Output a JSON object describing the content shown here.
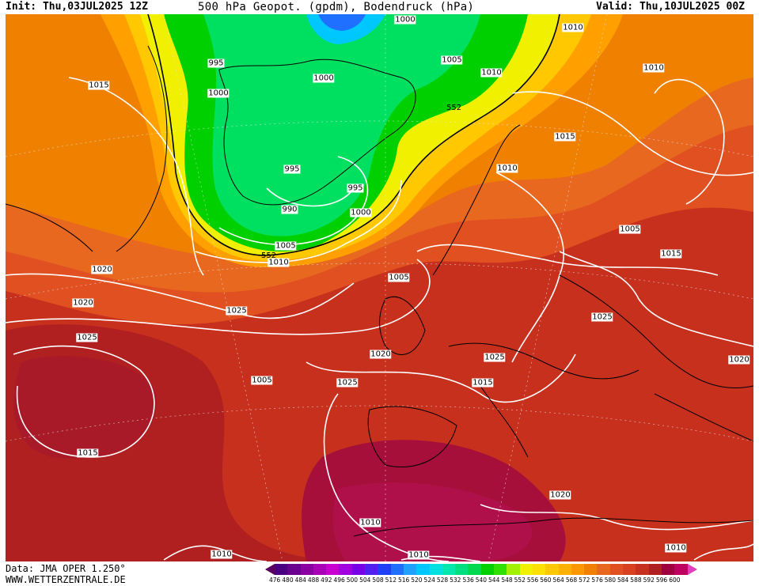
{
  "header": {
    "init": "Init: Thu,03JUL2025 12Z",
    "title": "500 hPa Geopot. (gpdm), Bodendruck (hPa)",
    "valid": "Valid: Thu,10JUL2025 00Z"
  },
  "footer": {
    "data_source": "Data: JMA OPER 1.250°",
    "website": "WWW.WETTERZENTRALE.DE"
  },
  "map": {
    "title": "500 hPa Geopot. (gpdm), Bodendruck (hPa)",
    "geopotential_label": "552",
    "isobar_labels": [
      "1000",
      "1010",
      "995",
      "1015",
      "1000",
      "1005",
      "1010",
      "1000",
      "552",
      "1010",
      "1015",
      "995",
      "995",
      "990",
      "1000",
      "1010",
      "1005",
      "1005",
      "1015",
      "552",
      "1010",
      "1020",
      "1005",
      "1020",
      "1025",
      "1025",
      "1025",
      "1020",
      "1025",
      "1020",
      "1005",
      "1025",
      "1015",
      "1015",
      "1020",
      "1010",
      "1010"
    ],
    "colorscale": {
      "unit": "gpdm",
      "values": [
        "476",
        "480",
        "484",
        "488",
        "492",
        "496",
        "500",
        "504",
        "508",
        "512",
        "516",
        "520",
        "524",
        "528",
        "532",
        "536",
        "540",
        "544",
        "548",
        "552",
        "556",
        "560",
        "564",
        "568",
        "572",
        "576",
        "580",
        "584",
        "588",
        "592",
        "596",
        "600"
      ],
      "colors": [
        "#4b0082",
        "#6a0090",
        "#8a00a0",
        "#aa00b8",
        "#c800d0",
        "#a000e0",
        "#7800e8",
        "#5020f0",
        "#2040f8",
        "#2070ff",
        "#20a0ff",
        "#00c8ff",
        "#00e0e0",
        "#00e8b0",
        "#00e080",
        "#00d850",
        "#00d000",
        "#30e000",
        "#a0f000",
        "#f0f000",
        "#ffe000",
        "#ffc800",
        "#ffb000",
        "#ff9800",
        "#f08000",
        "#e86820",
        "#e05020",
        "#d84020",
        "#c83020",
        "#b02020",
        "#a00040",
        "#c00060"
      ]
    }
  }
}
